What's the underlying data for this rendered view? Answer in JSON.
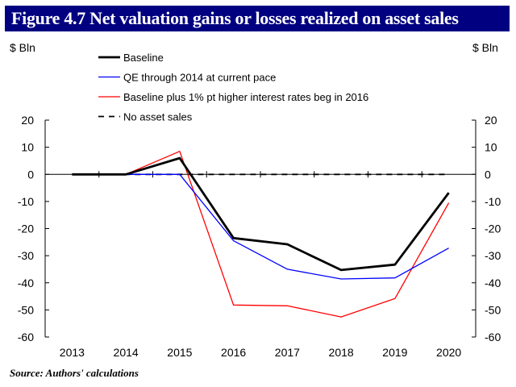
{
  "title": "Figure 4.7  Net valuation gains or losses realized on asset sales",
  "source": "Source:  Authors' calculations",
  "chart_data": {
    "type": "line",
    "x": [
      "2013",
      "2014",
      "2015",
      "2016",
      "2017",
      "2018",
      "2019",
      "2020"
    ],
    "ylabel_left": "$ Bln",
    "ylabel_right": "$ Bln",
    "ylim": [
      -60,
      20
    ],
    "yticks": [
      20,
      10,
      0,
      -10,
      -20,
      -30,
      -40,
      -50,
      -60
    ],
    "grid": false,
    "legend_position": "top-left",
    "series": [
      {
        "name": "Baseline",
        "color": "#000000",
        "style": "solid-thick",
        "values": [
          0,
          0,
          6,
          -23.5,
          -25.8,
          -35.3,
          -33.3,
          -6.8
        ]
      },
      {
        "name": "QE through 2014 at current pace",
        "color": "#0000ff",
        "style": "solid",
        "values": [
          0,
          0,
          0,
          -24.5,
          -35,
          -38.6,
          -38.2,
          -27.2
        ]
      },
      {
        "name": "Baseline plus 1% pt higher interest rates beg in 2016",
        "color": "#ff0000",
        "style": "solid",
        "values": [
          0,
          0,
          8.5,
          -48.2,
          -48.5,
          -52.6,
          -45.8,
          -10.5
        ]
      },
      {
        "name": "No asset sales",
        "color": "#000000",
        "style": "dashed",
        "values": [
          0,
          0,
          0,
          0,
          0,
          0,
          0,
          0
        ]
      }
    ]
  }
}
